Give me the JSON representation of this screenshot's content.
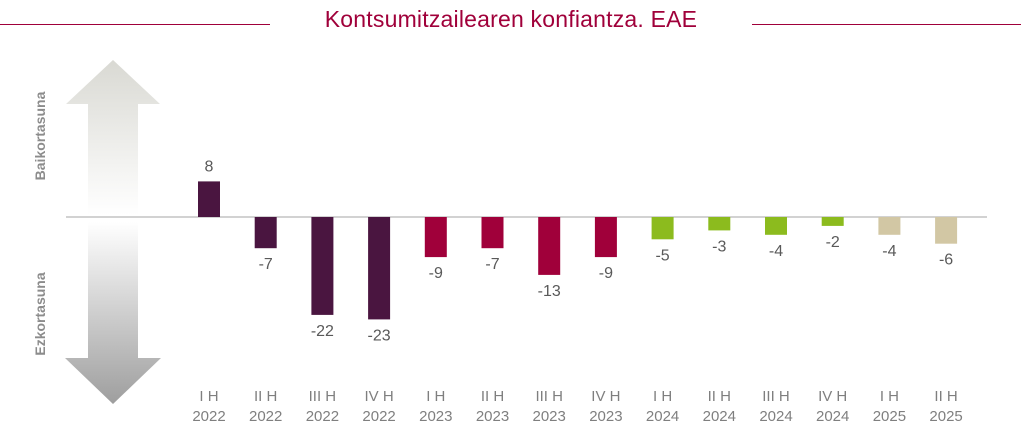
{
  "title": "Kontsumitzailearen konfiantza. EAE",
  "side_labels": {
    "optimism": "Baikortasuna",
    "pessimism": "Ezkortasuna"
  },
  "colors": {
    "title": "#a0003a",
    "2022": "#4a1540",
    "2023": "#a0003a",
    "2024": "#8cbb1e",
    "2025": "#d2c7a4",
    "arrow_up": "#dcdcd8",
    "arrow_down": "#a8a8a8"
  },
  "chart_data": {
    "type": "bar",
    "title": "Kontsumitzailearen konfiantza. EAE",
    "xlabel": "",
    "ylabel": "",
    "ylim": [
      -25,
      10
    ],
    "grid": false,
    "legend": "none",
    "categories": [
      [
        "I H",
        "2022"
      ],
      [
        "II H",
        "2022"
      ],
      [
        "III H",
        "2022"
      ],
      [
        "IV H",
        "2022"
      ],
      [
        "I H",
        "2023"
      ],
      [
        "II H",
        "2023"
      ],
      [
        "III H",
        "2023"
      ],
      [
        "IV H",
        "2023"
      ],
      [
        "I H",
        "2024"
      ],
      [
        "II H",
        "2024"
      ],
      [
        "III H",
        "2024"
      ],
      [
        "IV H",
        "2024"
      ],
      [
        "I H",
        "2025"
      ],
      [
        "II H",
        "2025"
      ]
    ],
    "values": [
      8,
      -7,
      -22,
      -23,
      -9,
      -7,
      -13,
      -9,
      -5,
      -3,
      -4,
      -2,
      -4,
      -6
    ],
    "data_labels": [
      "8",
      "-7",
      "-22",
      "-23",
      "-9",
      "-7",
      "-13",
      "-9",
      "-5",
      "-3",
      "-4",
      "-2",
      "-4",
      "-6"
    ],
    "bar_color_groups": [
      "2022",
      "2022",
      "2022",
      "2022",
      "2023",
      "2023",
      "2023",
      "2023",
      "2024",
      "2024",
      "2024",
      "2024",
      "2025",
      "2025"
    ]
  }
}
